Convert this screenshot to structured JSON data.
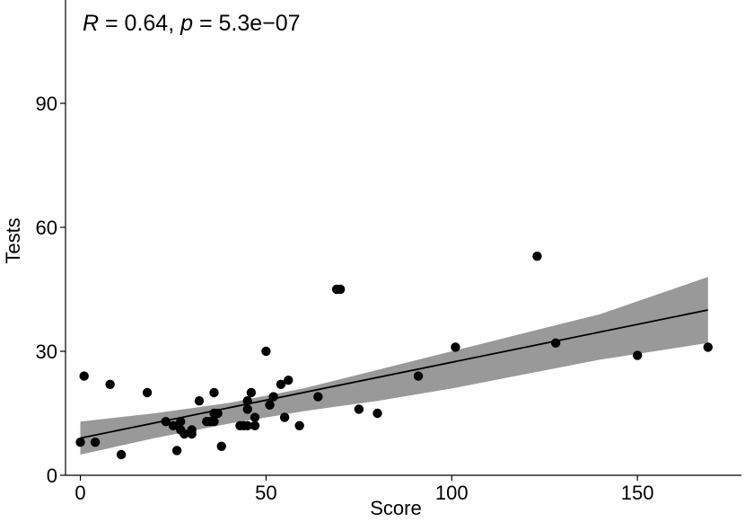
{
  "chart_data": {
    "type": "scatter",
    "xlabel": "Score",
    "ylabel": "Tests",
    "xlim": [
      -4,
      178
    ],
    "ylim": [
      0,
      115
    ],
    "x_ticks": [
      0,
      50,
      100,
      150
    ],
    "y_ticks": [
      0,
      30,
      60,
      90
    ],
    "annotation": {
      "R_symbol": "R",
      "R_text": " = 0.64, ",
      "p_symbol": "p",
      "p_text": " = 5.3e−07"
    },
    "points": [
      {
        "x": 0,
        "y": 8
      },
      {
        "x": 1,
        "y": 24
      },
      {
        "x": 4,
        "y": 8
      },
      {
        "x": 8,
        "y": 22
      },
      {
        "x": 11,
        "y": 5
      },
      {
        "x": 18,
        "y": 20
      },
      {
        "x": 23,
        "y": 13
      },
      {
        "x": 25,
        "y": 12
      },
      {
        "x": 26,
        "y": 6
      },
      {
        "x": 27,
        "y": 13
      },
      {
        "x": 27,
        "y": 11
      },
      {
        "x": 28,
        "y": 10
      },
      {
        "x": 30,
        "y": 11
      },
      {
        "x": 30,
        "y": 10
      },
      {
        "x": 32,
        "y": 18
      },
      {
        "x": 34,
        "y": 13
      },
      {
        "x": 35,
        "y": 13
      },
      {
        "x": 36,
        "y": 15
      },
      {
        "x": 36,
        "y": 13
      },
      {
        "x": 36,
        "y": 20
      },
      {
        "x": 37,
        "y": 15
      },
      {
        "x": 38,
        "y": 7
      },
      {
        "x": 43,
        "y": 12
      },
      {
        "x": 44,
        "y": 12
      },
      {
        "x": 45,
        "y": 12
      },
      {
        "x": 45,
        "y": 16
      },
      {
        "x": 45,
        "y": 18
      },
      {
        "x": 46,
        "y": 20
      },
      {
        "x": 47,
        "y": 14
      },
      {
        "x": 47,
        "y": 12
      },
      {
        "x": 50,
        "y": 30
      },
      {
        "x": 51,
        "y": 17
      },
      {
        "x": 52,
        "y": 19
      },
      {
        "x": 54,
        "y": 22
      },
      {
        "x": 55,
        "y": 14
      },
      {
        "x": 56,
        "y": 23
      },
      {
        "x": 59,
        "y": 12
      },
      {
        "x": 64,
        "y": 19
      },
      {
        "x": 69,
        "y": 45
      },
      {
        "x": 70,
        "y": 45
      },
      {
        "x": 75,
        "y": 16
      },
      {
        "x": 80,
        "y": 15
      },
      {
        "x": 91,
        "y": 24
      },
      {
        "x": 101,
        "y": 31
      },
      {
        "x": 123,
        "y": 53
      },
      {
        "x": 128,
        "y": 32
      },
      {
        "x": 150,
        "y": 29
      },
      {
        "x": 169,
        "y": 31
      }
    ],
    "fit_line": {
      "x": [
        0,
        169
      ],
      "y": [
        9,
        40
      ]
    },
    "confidence_band": {
      "x": [
        0,
        20,
        40,
        60,
        80,
        100,
        120,
        140,
        169
      ],
      "upper": [
        13,
        15,
        17.5,
        21,
        25.5,
        30,
        34.5,
        39,
        48
      ],
      "lower": [
        5,
        9,
        12.5,
        15.5,
        18,
        21,
        24.5,
        28,
        32
      ]
    }
  }
}
